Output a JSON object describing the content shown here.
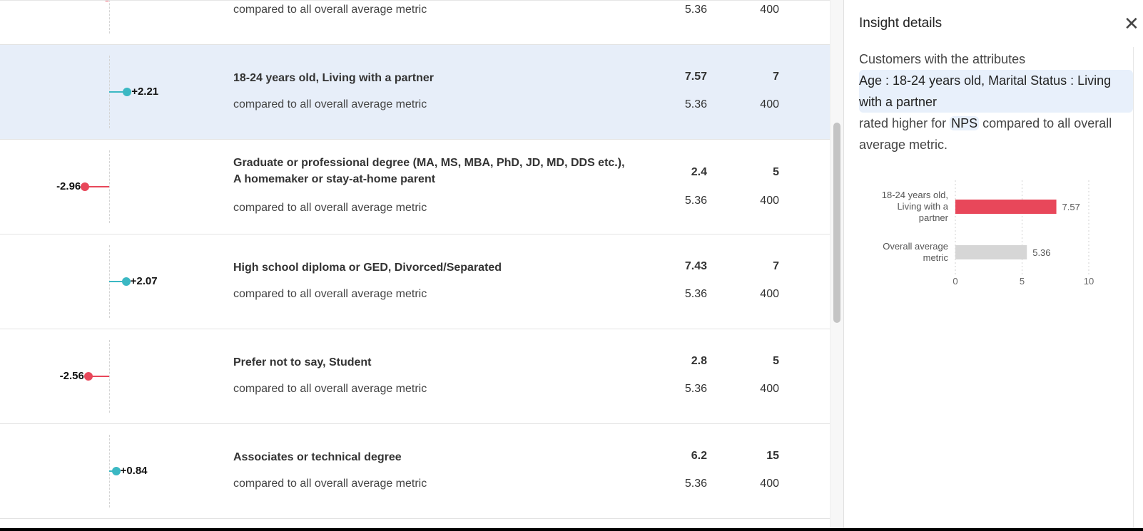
{
  "rows": [
    {
      "delta": "",
      "direction": "negative",
      "delta_value": -0.3,
      "title": "",
      "value": "",
      "count": "",
      "compare_label": "compared to all overall average metric",
      "compare_value": "5.36",
      "compare_count": "400",
      "partial": true
    },
    {
      "delta": "+2.21",
      "direction": "positive",
      "delta_value": 2.21,
      "title": "18-24 years old, Living with a partner",
      "value": "7.57",
      "count": "7",
      "compare_label": "compared to all overall average metric",
      "compare_value": "5.36",
      "compare_count": "400",
      "selected": true
    },
    {
      "delta": "-2.96",
      "direction": "negative",
      "delta_value": -2.96,
      "title": "Graduate or professional degree (MA, MS, MBA, PhD, JD, MD, DDS etc.), A homemaker or stay-at-home parent",
      "value": "2.4",
      "count": "5",
      "compare_label": "compared to all overall average metric",
      "compare_value": "5.36",
      "compare_count": "400"
    },
    {
      "delta": "+2.07",
      "direction": "positive",
      "delta_value": 2.07,
      "title": "High school diploma or GED, Divorced/Separated",
      "value": "7.43",
      "count": "7",
      "compare_label": "compared to all overall average metric",
      "compare_value": "5.36",
      "compare_count": "400"
    },
    {
      "delta": "-2.56",
      "direction": "negative",
      "delta_value": -2.56,
      "title": "Prefer not to say, Student",
      "value": "2.8",
      "count": "5",
      "compare_label": "compared to all overall average metric",
      "compare_value": "5.36",
      "compare_count": "400"
    },
    {
      "delta": "+0.84",
      "direction": "positive",
      "delta_value": 0.84,
      "title": "Associates or technical degree",
      "value": "6.2",
      "count": "15",
      "compare_label": "compared to all overall average metric",
      "compare_value": "5.36",
      "compare_count": "400"
    }
  ],
  "colors": {
    "positive": "#3bb8c3",
    "negative": "#e8475a",
    "selected_row": "#e7eef9",
    "bar_overall": "#d6d6d6"
  },
  "panel": {
    "title": "Insight details",
    "close_icon": "close-icon",
    "intro": "Customers with the attributes",
    "attributes": "Age : 18-24 years old, Marital Status : Living with a partner",
    "rated": "rated higher for",
    "metric": "NPS",
    "rest": "compared to all overall average metric."
  },
  "chart_data": {
    "type": "bar",
    "orientation": "horizontal",
    "categories": [
      "18-24 years old, Living with a partner",
      "Overall average metric"
    ],
    "values": [
      7.57,
      5.36
    ],
    "value_labels": [
      "7.57",
      "5.36"
    ],
    "colors": [
      "#e8475a",
      "#d6d6d6"
    ],
    "xlim": [
      0,
      10
    ],
    "xticks": [
      "0",
      "5",
      "10"
    ],
    "grid": true
  }
}
